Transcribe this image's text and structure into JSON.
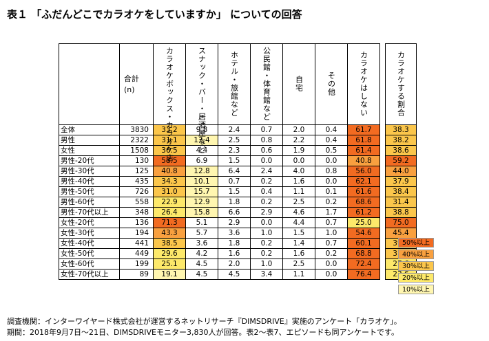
{
  "title": "表１ 「ふだんどこでカラオケをしていますか」 についての回答",
  "header": {
    "count_label_1": "合計",
    "count_label_2": "(n)",
    "columns": [
      "カラオケボックス・カラオケ店",
      "スナック・バー・居酒屋など",
      "ホテル・旅館など",
      "公民館・体育館など",
      "自宅",
      "その他",
      "カラオケはしない"
    ],
    "summary_column": "カラオケする割合"
  },
  "rows": [
    {
      "label": "全体",
      "n": "3830",
      "values": [
        "33.2",
        "9.8",
        "2.4",
        "0.7",
        "2.0",
        "0.4",
        "61.7"
      ],
      "summary": "38.3"
    },
    {
      "label": "男性",
      "n": "2322",
      "values": [
        "31.1",
        "13.4",
        "2.5",
        "0.8",
        "2.2",
        "0.4",
        "61.8"
      ],
      "summary": "38.2"
    },
    {
      "label": "女性",
      "n": "1508",
      "values": [
        "36.5",
        "4.4",
        "2.3",
        "0.6",
        "1.9",
        "0.5",
        "61.4"
      ],
      "summary": "38.6"
    },
    {
      "label": "男性-20代",
      "n": "130",
      "values": [
        "58.5",
        "6.9",
        "1.5",
        "0.0",
        "0.0",
        "0.0",
        "40.8"
      ],
      "summary": "59.2"
    },
    {
      "label": "男性-30代",
      "n": "125",
      "values": [
        "40.8",
        "12.8",
        "6.4",
        "2.4",
        "4.0",
        "0.8",
        "56.0"
      ],
      "summary": "44.0"
    },
    {
      "label": "男性-40代",
      "n": "435",
      "values": [
        "34.3",
        "10.1",
        "0.7",
        "0.2",
        "1.6",
        "0.0",
        "62.1"
      ],
      "summary": "37.9"
    },
    {
      "label": "男性-50代",
      "n": "726",
      "values": [
        "31.0",
        "15.7",
        "1.5",
        "0.4",
        "1.1",
        "0.1",
        "61.6"
      ],
      "summary": "38.4"
    },
    {
      "label": "男性-60代",
      "n": "558",
      "values": [
        "22.9",
        "12.9",
        "1.8",
        "0.2",
        "2.5",
        "0.2",
        "68.6"
      ],
      "summary": "31.4"
    },
    {
      "label": "男性-70代以上",
      "n": "348",
      "values": [
        "26.4",
        "15.8",
        "6.6",
        "2.9",
        "4.6",
        "1.7",
        "61.2"
      ],
      "summary": "38.8"
    },
    {
      "label": "女性-20代",
      "n": "136",
      "values": [
        "71.3",
        "5.1",
        "2.9",
        "0.0",
        "4.4",
        "0.7",
        "25.0"
      ],
      "summary": "75.0"
    },
    {
      "label": "女性-30代",
      "n": "194",
      "values": [
        "43.3",
        "5.7",
        "3.6",
        "1.0",
        "1.5",
        "1.0",
        "54.6"
      ],
      "summary": "45.4"
    },
    {
      "label": "女性-40代",
      "n": "441",
      "values": [
        "38.5",
        "3.6",
        "1.8",
        "0.2",
        "1.4",
        "0.7",
        "60.1"
      ],
      "summary": "39.9"
    },
    {
      "label": "女性-50代",
      "n": "449",
      "values": [
        "29.6",
        "4.2",
        "1.6",
        "0.2",
        "1.6",
        "0.2",
        "68.8"
      ],
      "summary": "31.2"
    },
    {
      "label": "女性-60代",
      "n": "199",
      "values": [
        "25.1",
        "4.5",
        "2.0",
        "1.0",
        "2.5",
        "0.0",
        "72.4"
      ],
      "summary": "27.6"
    },
    {
      "label": "女性-70代以上",
      "n": "89",
      "values": [
        "19.1",
        "4.5",
        "4.5",
        "3.4",
        "1.1",
        "0.0",
        "76.4"
      ],
      "summary": "23.6"
    }
  ],
  "legend": [
    {
      "label": "50%以上",
      "color": "#f26b21"
    },
    {
      "label": "40%以上",
      "color": "#f9a03f"
    },
    {
      "label": "30%以上",
      "color": "#fbc64b"
    },
    {
      "label": "20%以上",
      "color": "#fde96a"
    },
    {
      "label": "10%以上",
      "color": "#fff6b0"
    }
  ],
  "footer": {
    "line1": "調査機関：インターワイヤード株式会社が運営するネットリサーチ『DIMSDRIVE』実施のアンケート「カラオケ」。",
    "line2": "期間：2018年9月7日～21日、DIMSDRIVEモニター3,830人が回答。表2～表7、エピソードも同アンケートです。"
  }
}
